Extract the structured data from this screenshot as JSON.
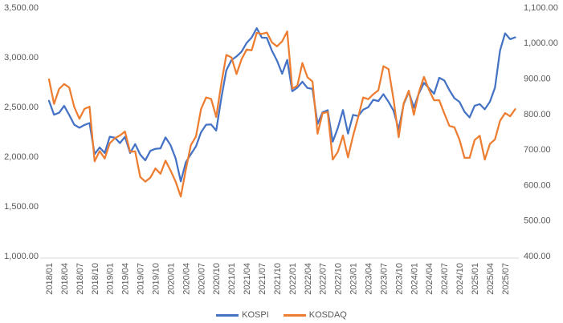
{
  "chart_data": {
    "type": "line",
    "title": "",
    "months": [
      "2018/01",
      "2018/02",
      "2018/03",
      "2018/04",
      "2018/05",
      "2018/06",
      "2018/07",
      "2018/08",
      "2018/09",
      "2018/10",
      "2018/11",
      "2018/12",
      "2019/01",
      "2019/02",
      "2019/03",
      "2019/04",
      "2019/05",
      "2019/06",
      "2019/07",
      "2019/08",
      "2019/09",
      "2019/10",
      "2019/11",
      "2019/12",
      "2020/01",
      "2020/02",
      "2020/03",
      "2020/04",
      "2020/05",
      "2020/06",
      "2020/07",
      "2020/08",
      "2020/09",
      "2020/10",
      "2020/11",
      "2020/12",
      "2021/01",
      "2021/02",
      "2021/03",
      "2021/04",
      "2021/05",
      "2021/06",
      "2021/07",
      "2021/08",
      "2021/09",
      "2021/10",
      "2021/11",
      "2021/12",
      "2022/01",
      "2022/02",
      "2022/03",
      "2022/04",
      "2022/05",
      "2022/06",
      "2022/07",
      "2022/08",
      "2022/09",
      "2022/10",
      "2022/11",
      "2022/12",
      "2023/01",
      "2023/02",
      "2023/03",
      "2023/04",
      "2023/05",
      "2023/06",
      "2023/07",
      "2023/08",
      "2023/09",
      "2023/10",
      "2023/11",
      "2023/12",
      "2024/01",
      "2024/02",
      "2024/03",
      "2024/04",
      "2024/05",
      "2024/06",
      "2024/07",
      "2024/08",
      "2024/09",
      "2024/10",
      "2024/11",
      "2024/12",
      "2025/01",
      "2025/02",
      "2025/03",
      "2025/04",
      "2025/05",
      "2025/06",
      "2025/07",
      "2025/08",
      "2025/09"
    ],
    "x_tick_labels": [
      "2018/01",
      "2018/04",
      "2018/07",
      "2018/10",
      "2019/01",
      "2019/04",
      "2019/07",
      "2019/10",
      "2020/01",
      "2020/04",
      "2020/07",
      "2020/10",
      "2021/01",
      "2021/04",
      "2021/07",
      "2021/10",
      "2022/01",
      "2022/04",
      "2022/07",
      "2022/10",
      "2023/01",
      "2023/04",
      "2023/07",
      "2023/10",
      "2024/01",
      "2024/04",
      "2024/07",
      "2024/10",
      "2025/01",
      "2025/04",
      "2025/07"
    ],
    "x_tick_every_n_months": 3,
    "series": [
      {
        "name": "KOSPI",
        "axis": "left",
        "color": "#4472C4",
        "values": [
          2566,
          2427,
          2446,
          2515,
          2423,
          2326,
          2295,
          2323,
          2343,
          2030,
          2097,
          2041,
          2205,
          2195,
          2141,
          2204,
          2042,
          2131,
          2025,
          1968,
          2063,
          2083,
          2088,
          2198,
          2119,
          1987,
          1755,
          1948,
          2030,
          2108,
          2249,
          2326,
          2328,
          2267,
          2591,
          2873,
          2976,
          3013,
          3061,
          3148,
          3204,
          3297,
          3202,
          3199,
          3069,
          2971,
          2839,
          2978,
          2663,
          2699,
          2758,
          2695,
          2686,
          2333,
          2452,
          2472,
          2155,
          2294,
          2473,
          2236,
          2425,
          2413,
          2477,
          2502,
          2577,
          2564,
          2633,
          2556,
          2465,
          2278,
          2535,
          2655,
          2497,
          2642,
          2747,
          2692,
          2637,
          2798,
          2771,
          2674,
          2593,
          2556,
          2456,
          2399,
          2517,
          2533,
          2481,
          2557,
          2698,
          3072,
          3245,
          3186,
          3205
        ]
      },
      {
        "name": "KOSDAQ",
        "axis": "right",
        "color": "#ED7D31",
        "values": [
          899,
          830,
          872,
          886,
          876,
          821,
          788,
          816,
          822,
          668,
          697,
          676,
          719,
          733,
          741,
          752,
          695,
          696,
          624,
          611,
          622,
          648,
          633,
          670,
          642,
          611,
          569,
          645,
          714,
          738,
          815,
          848,
          844,
          793,
          886,
          968,
          961,
          914,
          956,
          983,
          981,
          1030,
          1027,
          1031,
          1003,
          992,
          1006,
          1034,
          873,
          881,
          945,
          905,
          893,
          746,
          804,
          807,
          673,
          695,
          741,
          679,
          740,
          792,
          848,
          843,
          857,
          868,
          936,
          928,
          841,
          736,
          832,
          867,
          799,
          863,
          906,
          869,
          840,
          840,
          803,
          768,
          764,
          729,
          678,
          678,
          728,
          740,
          673,
          717,
          730,
          782,
          804,
          795,
          815
        ]
      }
    ],
    "left_axis": {
      "min": 1000,
      "max": 3500,
      "step": 500,
      "tick_labels": [
        "3,500.00",
        "3,000.00",
        "2,500.00",
        "2,000.00",
        "1,500.00",
        "1,000.00"
      ]
    },
    "right_axis": {
      "min": 400,
      "max": 1100,
      "step": 100,
      "tick_labels": [
        "1,100.00",
        "1,000.00",
        "900.00",
        "800.00",
        "700.00",
        "600.00",
        "500.00",
        "400.00"
      ]
    },
    "grid": false,
    "legend_position": "bottom-center"
  },
  "colors": {
    "axis_text": "#595959",
    "axis_line": "#D9D9D9",
    "background": "#FFFFFF",
    "kospi_line": "#4472C4",
    "kosdaq_line": "#ED7D31"
  }
}
